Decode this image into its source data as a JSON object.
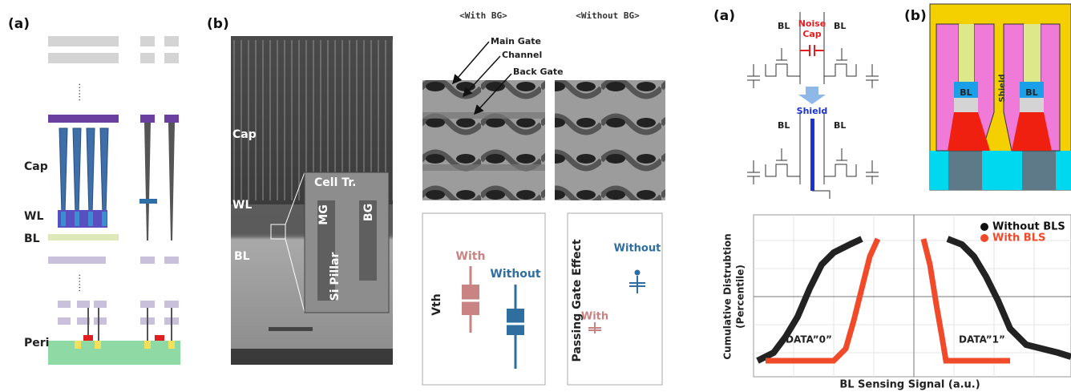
{
  "panel_1": {
    "label": "(a)",
    "dots_top": "......",
    "dots_bottom": "......",
    "cap": "Cap",
    "wl": "WL",
    "bl": "BL",
    "peri": "Peri"
  },
  "panel_2": {
    "label": "(b)",
    "cap": "Cap",
    "wl": "WL",
    "bl": "BL",
    "inset_title": "Cell Tr.",
    "mg": "MG",
    "bg": "BG",
    "pillar": "Si Pillar"
  },
  "panel_3": {
    "with_bg": "<With BG>",
    "without_bg": "<Without BG>",
    "main_gate": "Main Gate",
    "channel": "Channel",
    "back_gate": "Back Gate",
    "vth_plot": {
      "ylabel": "Vth",
      "with": "With",
      "without": "Without"
    },
    "pge_plot": {
      "ylabel": "Passing Gate Effect",
      "with": "With",
      "without": "Without"
    }
  },
  "panel_4": {
    "label_a": "(a)",
    "bl_1": "BL",
    "noise_cap": [
      "Noise",
      "Cap"
    ],
    "bl_2": "BL",
    "shield": "Shield",
    "bl_3": "BL",
    "bl_4": "BL",
    "label_b": "(b)",
    "bl_5": "BL",
    "shield_b": "Shield",
    "bl_6": "BL",
    "chart": {
      "legend": [
        "Without BLS",
        "With BLS"
      ],
      "ylabel": [
        "Cumulative Distrubtion",
        "(Percentile)"
      ],
      "data0": "DATA”0”",
      "data1": "DATA”1”",
      "xlabel": "BL Sensing Signal (a.u.)"
    }
  }
}
